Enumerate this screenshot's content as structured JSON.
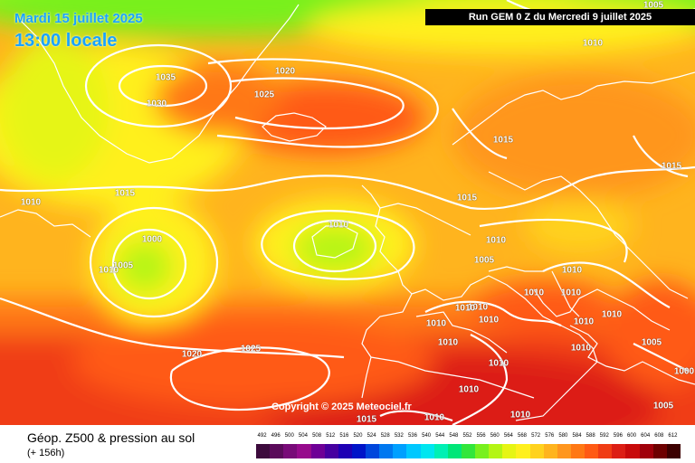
{
  "header": {
    "date": "Mardi 15 juillet 2025",
    "time": "13:00 locale",
    "run": "Run GEM 0 Z du Mercredi 9 juillet 2025"
  },
  "copyright": "Copyright © 2025 Meteociel.fr",
  "footer": {
    "variable": "Géop. Z500 & pression au sol",
    "lead": "(+ 156h)"
  },
  "isobar_labels": [
    "1005",
    "1010",
    "1020",
    "1035",
    "1030",
    "1025",
    "1015",
    "1015",
    "1010",
    "1015",
    "1010",
    "1000",
    "1005",
    "1010",
    "1010",
    "1015",
    "1005",
    "1010",
    "1010",
    "1010",
    "1010",
    "1010",
    "1010",
    "1010",
    "1010",
    "1010",
    "1010",
    "1010",
    "1005",
    "1000",
    "1020",
    "1025",
    "1010",
    "1005",
    "1015",
    "1010",
    "1010",
    "1010"
  ],
  "scale": {
    "labels": [
      "492",
      "496",
      "500",
      "504",
      "508",
      "512",
      "516",
      "520",
      "524",
      "528",
      "532",
      "536",
      "540",
      "544",
      "548",
      "552",
      "556",
      "560",
      "564",
      "568",
      "572",
      "576",
      "580",
      "584",
      "588",
      "592",
      "596",
      "600",
      "604",
      "608",
      "612"
    ],
    "colors": [
      "#3c0a3c",
      "#5a0a5a",
      "#780a78",
      "#960a8c",
      "#6e0096",
      "#4600a0",
      "#1e00b4",
      "#0014c8",
      "#0046dc",
      "#0078f0",
      "#00a0ff",
      "#00c8ff",
      "#00e6f0",
      "#00f0b4",
      "#00e678",
      "#32e63c",
      "#78f01e",
      "#b4f514",
      "#e6f514",
      "#fff01e",
      "#ffd21e",
      "#ffb41e",
      "#ff961e",
      "#ff7814",
      "#ff5a14",
      "#f03c14",
      "#dc1e14",
      "#c80a0a",
      "#a0000a",
      "#6e0000",
      "#3c0000"
    ]
  }
}
